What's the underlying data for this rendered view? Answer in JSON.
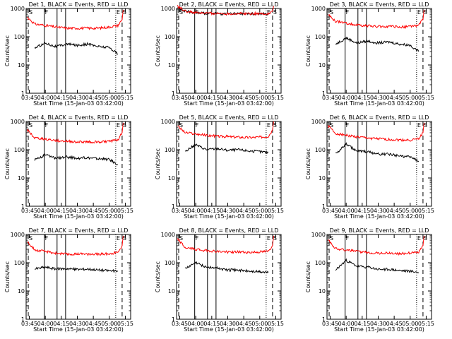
{
  "figure": {
    "ylabel": "Counts/sec",
    "xlabel": "Start Time (15-Jan-03 03:42:00)",
    "colors": {
      "events": "#000000",
      "lld": "#ff0000",
      "axes": "#000000"
    }
  },
  "chart_data": [
    {
      "type": "line",
      "title": "Det 1, BLACK = Events, RED = LLD",
      "ylabel": "Counts/sec",
      "xlabel": "Start Time (15-Jan-03 03:42:00)",
      "xlim": [
        "03:42",
        "05:20"
      ],
      "ylim": [
        1,
        1000
      ],
      "yscale": "log",
      "yticks": [
        "1",
        "10",
        "100",
        "1000"
      ],
      "xticks": [
        "03:45",
        "04:00",
        "04:15",
        "04:30",
        "04:45",
        "05:00",
        "05:15"
      ],
      "markers": [
        {
          "label": "S",
          "x": "03:44",
          "style": "dashed"
        },
        {
          "label": "F",
          "x": "03:59",
          "style": "solid"
        },
        {
          "label": "",
          "x": "04:11",
          "style": "solid"
        },
        {
          "label": "",
          "x": "04:19",
          "style": "solid"
        },
        {
          "label": "E",
          "x": "05:06",
          "style": "dotted"
        },
        {
          "label": "S",
          "x": "05:12",
          "style": "dashed"
        }
      ],
      "series": [
        {
          "name": "Events",
          "x": [
            "03:50",
            "04:00",
            "04:10",
            "04:20",
            "04:30",
            "04:40",
            "04:50",
            "05:00",
            "05:08"
          ],
          "values": [
            40,
            60,
            45,
            55,
            50,
            55,
            45,
            42,
            25
          ]
        },
        {
          "name": "LLD",
          "x": [
            "03:43",
            "03:50",
            "04:00",
            "04:10",
            "04:20",
            "04:30",
            "04:40",
            "04:50",
            "05:00",
            "05:08",
            "05:12",
            "05:13"
          ],
          "values": [
            500,
            280,
            250,
            220,
            200,
            200,
            200,
            200,
            220,
            250,
            400,
            900
          ]
        }
      ]
    },
    {
      "type": "line",
      "title": "Det 2, BLACK = Events, RED = LLD",
      "ylabel": "Counts/sec",
      "xlabel": "Start Time (15-Jan-03 03:42:00)",
      "xlim": [
        "03:42",
        "05:20"
      ],
      "ylim": [
        1,
        1000
      ],
      "yscale": "log",
      "yticks": [
        "1",
        "10",
        "100",
        "1000"
      ],
      "xticks": [
        "03:45",
        "04:00",
        "04:15",
        "04:30",
        "04:45",
        "05:00",
        "05:15"
      ],
      "markers": [
        {
          "label": "S",
          "x": "03:44",
          "style": "dashed"
        },
        {
          "label": "F",
          "x": "03:59",
          "style": "solid"
        },
        {
          "label": "",
          "x": "04:11",
          "style": "solid"
        },
        {
          "label": "",
          "x": "04:19",
          "style": "solid"
        },
        {
          "label": "E",
          "x": "05:06",
          "style": "dotted"
        },
        {
          "label": "S",
          "x": "05:12",
          "style": "dashed"
        }
      ],
      "series": [
        {
          "name": "Events",
          "x": [
            "03:43",
            "03:50",
            "04:00",
            "04:10",
            "04:20",
            "04:30",
            "04:40",
            "04:50",
            "05:00",
            "05:08"
          ],
          "values": [
            1100,
            800,
            700,
            680,
            650,
            650,
            650,
            650,
            650,
            620
          ]
        },
        {
          "name": "LLD",
          "x": [
            "03:43",
            "03:50",
            "04:00",
            "04:10",
            "04:20",
            "04:30",
            "04:40",
            "04:50",
            "05:00",
            "05:08",
            "05:12",
            "05:13"
          ],
          "values": [
            1200,
            800,
            700,
            680,
            660,
            660,
            660,
            660,
            660,
            640,
            800,
            1200
          ]
        }
      ]
    },
    {
      "type": "line",
      "title": "Det 3, BLACK = Events, RED = LLD",
      "ylabel": "Counts/sec",
      "xlabel": "Start Time (15-Jan-03 03:42:00)",
      "xlim": [
        "03:42",
        "05:20"
      ],
      "ylim": [
        1,
        1000
      ],
      "yscale": "log",
      "yticks": [
        "1",
        "10",
        "100",
        "1000"
      ],
      "xticks": [
        "03:45",
        "04:00",
        "04:15",
        "04:30",
        "04:45",
        "05:00",
        "05:15"
      ],
      "markers": [
        {
          "label": "S",
          "x": "03:44",
          "style": "dashed"
        },
        {
          "label": "F",
          "x": "03:59",
          "style": "solid"
        },
        {
          "label": "",
          "x": "04:11",
          "style": "solid"
        },
        {
          "label": "",
          "x": "04:19",
          "style": "solid"
        },
        {
          "label": "E",
          "x": "05:06",
          "style": "dotted"
        },
        {
          "label": "S",
          "x": "05:12",
          "style": "dashed"
        }
      ],
      "series": [
        {
          "name": "Events",
          "x": [
            "03:50",
            "04:00",
            "04:10",
            "04:20",
            "04:30",
            "04:40",
            "04:50",
            "05:00",
            "05:08"
          ],
          "values": [
            55,
            90,
            60,
            70,
            60,
            65,
            55,
            50,
            30
          ]
        },
        {
          "name": "LLD",
          "x": [
            "03:43",
            "03:50",
            "04:00",
            "04:10",
            "04:20",
            "04:30",
            "04:40",
            "04:50",
            "05:00",
            "05:08",
            "05:12",
            "05:13"
          ],
          "values": [
            600,
            350,
            300,
            260,
            240,
            230,
            230,
            220,
            230,
            260,
            400,
            900
          ]
        }
      ]
    },
    {
      "type": "line",
      "title": "Det 4, BLACK = Events, RED = LLD",
      "ylabel": "Counts/sec",
      "xlabel": "Start Time (15-Jan-03 03:42:00)",
      "xlim": [
        "03:42",
        "05:20"
      ],
      "ylim": [
        1,
        1000
      ],
      "yscale": "log",
      "yticks": [
        "1",
        "10",
        "100",
        "1000"
      ],
      "xticks": [
        "03:45",
        "04:00",
        "04:15",
        "04:30",
        "04:45",
        "05:00",
        "05:15"
      ],
      "markers": [
        {
          "label": "S",
          "x": "03:44",
          "style": "dashed"
        },
        {
          "label": "F",
          "x": "03:59",
          "style": "solid"
        },
        {
          "label": "",
          "x": "04:11",
          "style": "solid"
        },
        {
          "label": "",
          "x": "04:19",
          "style": "solid"
        },
        {
          "label": "E",
          "x": "05:06",
          "style": "dotted"
        },
        {
          "label": "S",
          "x": "05:12",
          "style": "dashed"
        }
      ],
      "series": [
        {
          "name": "Events",
          "x": [
            "03:50",
            "04:00",
            "04:10",
            "04:20",
            "04:30",
            "04:40",
            "04:50",
            "05:00",
            "05:08"
          ],
          "values": [
            45,
            65,
            50,
            55,
            50,
            52,
            48,
            45,
            30
          ]
        },
        {
          "name": "LLD",
          "x": [
            "03:43",
            "03:50",
            "04:00",
            "04:10",
            "04:20",
            "04:30",
            "04:40",
            "04:50",
            "05:00",
            "05:08",
            "05:12",
            "05:13"
          ],
          "values": [
            500,
            260,
            240,
            210,
            200,
            190,
            190,
            190,
            200,
            220,
            400,
            900
          ]
        }
      ]
    },
    {
      "type": "line",
      "title": "Det 5, BLACK = Events, RED = LLD",
      "ylabel": "Counts/sec",
      "xlabel": "Start Time (15-Jan-03 03:42:00)",
      "xlim": [
        "03:42",
        "05:20"
      ],
      "ylim": [
        1,
        1000
      ],
      "yscale": "log",
      "yticks": [
        "1",
        "10",
        "100",
        "1000"
      ],
      "xticks": [
        "03:45",
        "04:00",
        "04:15",
        "04:30",
        "04:45",
        "05:00",
        "05:15"
      ],
      "markers": [
        {
          "label": "S",
          "x": "03:44",
          "style": "dashed"
        },
        {
          "label": "F",
          "x": "03:59",
          "style": "solid"
        },
        {
          "label": "",
          "x": "04:11",
          "style": "solid"
        },
        {
          "label": "",
          "x": "04:19",
          "style": "solid"
        },
        {
          "label": "E",
          "x": "05:06",
          "style": "dotted"
        },
        {
          "label": "S",
          "x": "05:12",
          "style": "dashed"
        }
      ],
      "series": [
        {
          "name": "Events",
          "x": [
            "03:50",
            "04:00",
            "04:10",
            "04:20",
            "04:30",
            "04:40",
            "04:50",
            "05:00",
            "05:08"
          ],
          "values": [
            90,
            150,
            100,
            110,
            95,
            100,
            90,
            85,
            80
          ]
        },
        {
          "name": "LLD",
          "x": [
            "03:43",
            "03:50",
            "04:00",
            "04:10",
            "04:20",
            "04:30",
            "04:40",
            "04:50",
            "05:00",
            "05:08",
            "05:12",
            "05:13"
          ],
          "values": [
            700,
            400,
            360,
            320,
            300,
            290,
            280,
            270,
            280,
            300,
            500,
            1000
          ]
        }
      ]
    },
    {
      "type": "line",
      "title": "Det 6, BLACK = Events, RED = LLD",
      "ylabel": "Counts/sec",
      "xlabel": "Start Time (15-Jan-03 03:42:00)",
      "xlim": [
        "03:42",
        "05:20"
      ],
      "ylim": [
        1,
        1000
      ],
      "yscale": "log",
      "yticks": [
        "1",
        "10",
        "100",
        "1000"
      ],
      "xticks": [
        "03:45",
        "04:00",
        "04:15",
        "04:30",
        "04:45",
        "05:00",
        "05:15"
      ],
      "markers": [
        {
          "label": "S",
          "x": "03:44",
          "style": "dashed"
        },
        {
          "label": "F",
          "x": "03:59",
          "style": "solid"
        },
        {
          "label": "",
          "x": "04:11",
          "style": "solid"
        },
        {
          "label": "",
          "x": "04:19",
          "style": "solid"
        },
        {
          "label": "E",
          "x": "05:06",
          "style": "dotted"
        },
        {
          "label": "S",
          "x": "05:12",
          "style": "dashed"
        }
      ],
      "series": [
        {
          "name": "Events",
          "x": [
            "03:50",
            "04:00",
            "04:10",
            "04:20",
            "04:30",
            "04:40",
            "04:50",
            "05:00",
            "05:08"
          ],
          "values": [
            70,
            160,
            90,
            85,
            70,
            70,
            60,
            55,
            40
          ]
        },
        {
          "name": "LLD",
          "x": [
            "03:43",
            "03:50",
            "04:00",
            "04:10",
            "04:20",
            "04:30",
            "04:40",
            "04:50",
            "05:00",
            "05:08",
            "05:12",
            "05:13"
          ],
          "values": [
            700,
            380,
            330,
            280,
            260,
            240,
            230,
            220,
            220,
            240,
            400,
            900
          ]
        }
      ]
    },
    {
      "type": "line",
      "title": "Det 7, BLACK = Events, RED = LLD",
      "ylabel": "Counts/sec",
      "xlabel": "Start Time (15-Jan-03 03:42:00)",
      "xlim": [
        "03:42",
        "05:20"
      ],
      "ylim": [
        1,
        1000
      ],
      "yscale": "log",
      "yticks": [
        "1",
        "10",
        "100",
        "1000"
      ],
      "xticks": [
        "03:45",
        "04:00",
        "04:15",
        "04:30",
        "04:45",
        "05:00",
        "05:15"
      ],
      "markers": [
        {
          "label": "S",
          "x": "03:44",
          "style": "dashed"
        },
        {
          "label": "F",
          "x": "03:59",
          "style": "solid"
        },
        {
          "label": "",
          "x": "04:11",
          "style": "solid"
        },
        {
          "label": "",
          "x": "04:19",
          "style": "solid"
        },
        {
          "label": "E",
          "x": "05:06",
          "style": "dotted"
        },
        {
          "label": "S",
          "x": "05:12",
          "style": "dashed"
        }
      ],
      "series": [
        {
          "name": "Events",
          "x": [
            "03:50",
            "04:00",
            "04:10",
            "04:20",
            "04:30",
            "04:40",
            "04:50",
            "05:00",
            "05:08"
          ],
          "values": [
            60,
            70,
            60,
            62,
            58,
            60,
            55,
            52,
            50
          ]
        },
        {
          "name": "LLD",
          "x": [
            "03:43",
            "03:50",
            "04:00",
            "04:10",
            "04:20",
            "04:30",
            "04:40",
            "04:50",
            "05:00",
            "05:08",
            "05:12",
            "05:13"
          ],
          "values": [
            550,
            280,
            250,
            220,
            200,
            200,
            200,
            200,
            210,
            230,
            400,
            900
          ]
        }
      ]
    },
    {
      "type": "line",
      "title": "Det 8, BLACK = Events, RED = LLD",
      "ylabel": "Counts/sec",
      "xlabel": "Start Time (15-Jan-03 03:42:00)",
      "xlim": [
        "03:42",
        "05:20"
      ],
      "ylim": [
        1,
        1000
      ],
      "yscale": "log",
      "yticks": [
        "1",
        "10",
        "100",
        "1000"
      ],
      "xticks": [
        "03:45",
        "04:00",
        "04:15",
        "04:30",
        "04:45",
        "05:00",
        "05:15"
      ],
      "markers": [
        {
          "label": "S",
          "x": "03:44",
          "style": "dashed"
        },
        {
          "label": "F",
          "x": "03:59",
          "style": "solid"
        },
        {
          "label": "",
          "x": "04:11",
          "style": "solid"
        },
        {
          "label": "",
          "x": "04:19",
          "style": "solid"
        },
        {
          "label": "E",
          "x": "05:06",
          "style": "dotted"
        },
        {
          "label": "S",
          "x": "05:12",
          "style": "dashed"
        }
      ],
      "series": [
        {
          "name": "Events",
          "x": [
            "03:50",
            "04:00",
            "04:10",
            "04:20",
            "04:30",
            "04:40",
            "04:50",
            "05:00",
            "05:08"
          ],
          "values": [
            60,
            100,
            70,
            65,
            55,
            55,
            50,
            48,
            45
          ]
        },
        {
          "name": "LLD",
          "x": [
            "03:43",
            "03:50",
            "04:00",
            "04:10",
            "04:20",
            "04:30",
            "04:40",
            "04:50",
            "05:00",
            "05:08",
            "05:12",
            "05:13"
          ],
          "values": [
            700,
            340,
            300,
            270,
            250,
            240,
            240,
            230,
            240,
            250,
            400,
            900
          ]
        }
      ]
    },
    {
      "type": "line",
      "title": "Det 9, BLACK = Events, RED = LLD",
      "ylabel": "Counts/sec",
      "xlabel": "Start Time (15-Jan-03 03:42:00)",
      "xlim": [
        "03:42",
        "05:20"
      ],
      "ylim": [
        1,
        1000
      ],
      "yscale": "log",
      "yticks": [
        "1",
        "10",
        "100",
        "1000"
      ],
      "xticks": [
        "03:45",
        "04:00",
        "04:15",
        "04:30",
        "04:45",
        "05:00",
        "05:15"
      ],
      "markers": [
        {
          "label": "S",
          "x": "03:44",
          "style": "dashed"
        },
        {
          "label": "F",
          "x": "03:59",
          "style": "solid"
        },
        {
          "label": "",
          "x": "04:11",
          "style": "solid"
        },
        {
          "label": "",
          "x": "04:19",
          "style": "solid"
        },
        {
          "label": "E",
          "x": "05:06",
          "style": "dotted"
        },
        {
          "label": "S",
          "x": "05:12",
          "style": "dashed"
        }
      ],
      "series": [
        {
          "name": "Events",
          "x": [
            "03:50",
            "04:00",
            "04:10",
            "04:20",
            "04:30",
            "04:40",
            "04:50",
            "05:00",
            "05:08"
          ],
          "values": [
            55,
            120,
            75,
            70,
            58,
            58,
            52,
            50,
            45
          ]
        },
        {
          "name": "LLD",
          "x": [
            "03:43",
            "03:50",
            "04:00",
            "04:10",
            "04:20",
            "04:30",
            "04:40",
            "04:50",
            "05:00",
            "05:08",
            "05:12",
            "05:13"
          ],
          "values": [
            650,
            320,
            280,
            250,
            230,
            220,
            220,
            210,
            220,
            240,
            400,
            900
          ]
        }
      ]
    }
  ]
}
